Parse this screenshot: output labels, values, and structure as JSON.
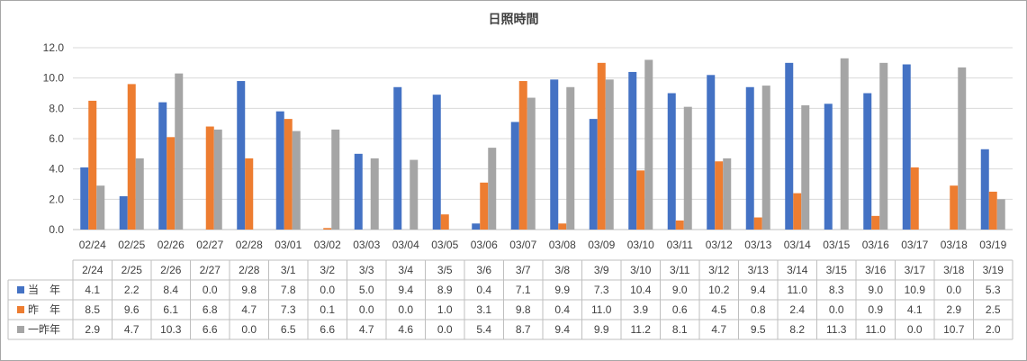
{
  "chart_data": {
    "type": "bar",
    "title": "日照時間",
    "xlabel": "",
    "ylabel": "",
    "ylim": [
      0,
      12
    ],
    "yticks": [
      "0.0",
      "2.0",
      "4.0",
      "6.0",
      "8.0",
      "10.0",
      "12.0"
    ],
    "grid": true,
    "legend": "table-below",
    "categories": [
      "02/24",
      "02/25",
      "02/26",
      "02/27",
      "02/28",
      "03/01",
      "03/02",
      "03/03",
      "03/04",
      "03/05",
      "03/06",
      "03/07",
      "03/08",
      "03/09",
      "03/10",
      "03/11",
      "03/12",
      "03/13",
      "03/14",
      "03/15",
      "03/16",
      "03/17",
      "03/18",
      "03/19"
    ],
    "table_headers": [
      "2/24",
      "2/25",
      "2/26",
      "2/27",
      "2/28",
      "3/1",
      "3/2",
      "3/3",
      "3/4",
      "3/5",
      "3/6",
      "3/7",
      "3/8",
      "3/9",
      "3/10",
      "3/11",
      "3/12",
      "3/13",
      "3/14",
      "3/15",
      "3/16",
      "3/17",
      "3/18",
      "3/19"
    ],
    "series": [
      {
        "name": "当　年",
        "color": "#4472c4",
        "values": [
          4.1,
          2.2,
          8.4,
          0.0,
          9.8,
          7.8,
          0.0,
          5.0,
          9.4,
          8.9,
          0.4,
          7.1,
          9.9,
          7.3,
          10.4,
          9.0,
          10.2,
          9.4,
          11.0,
          8.3,
          9.0,
          10.9,
          0.0,
          5.3
        ],
        "labels": [
          "4.1",
          "2.2",
          "8.4",
          "0.0",
          "9.8",
          "7.8",
          "0.0",
          "5.0",
          "9.4",
          "8.9",
          "0.4",
          "7.1",
          "9.9",
          "7.3",
          "10.4",
          "9.0",
          "10.2",
          "9.4",
          "11.0",
          "8.3",
          "9.0",
          "10.9",
          "0.0",
          "5.3"
        ]
      },
      {
        "name": "昨　年",
        "color": "#ed7d31",
        "values": [
          8.5,
          9.6,
          6.1,
          6.8,
          4.7,
          7.3,
          0.1,
          0.0,
          0.0,
          1.0,
          3.1,
          9.8,
          0.4,
          11.0,
          3.9,
          0.6,
          4.5,
          0.8,
          2.4,
          0.0,
          0.9,
          4.1,
          2.9,
          2.5
        ],
        "labels": [
          "8.5",
          "9.6",
          "6.1",
          "6.8",
          "4.7",
          "7.3",
          "0.1",
          "0.0",
          "0.0",
          "1.0",
          "3.1",
          "9.8",
          "0.4",
          "11.0",
          "3.9",
          "0.6",
          "4.5",
          "0.8",
          "2.4",
          "0.0",
          "0.9",
          "4.1",
          "2.9",
          "2.5"
        ]
      },
      {
        "name": "一昨年",
        "color": "#a5a5a5",
        "values": [
          2.9,
          4.7,
          10.3,
          6.6,
          0.0,
          6.5,
          6.6,
          4.7,
          4.6,
          0.0,
          5.4,
          8.7,
          9.4,
          9.9,
          11.2,
          8.1,
          4.7,
          9.5,
          8.2,
          11.3,
          11.0,
          0.0,
          10.7,
          2.0
        ],
        "labels": [
          "2.9",
          "4.7",
          "10.3",
          "6.6",
          "0.0",
          "6.5",
          "6.6",
          "4.7",
          "4.6",
          "0.0",
          "5.4",
          "8.7",
          "9.4",
          "9.9",
          "11.2",
          "8.1",
          "4.7",
          "9.5",
          "8.2",
          "11.3",
          "11.0",
          "0.0",
          "10.7",
          "2.0"
        ]
      }
    ]
  }
}
